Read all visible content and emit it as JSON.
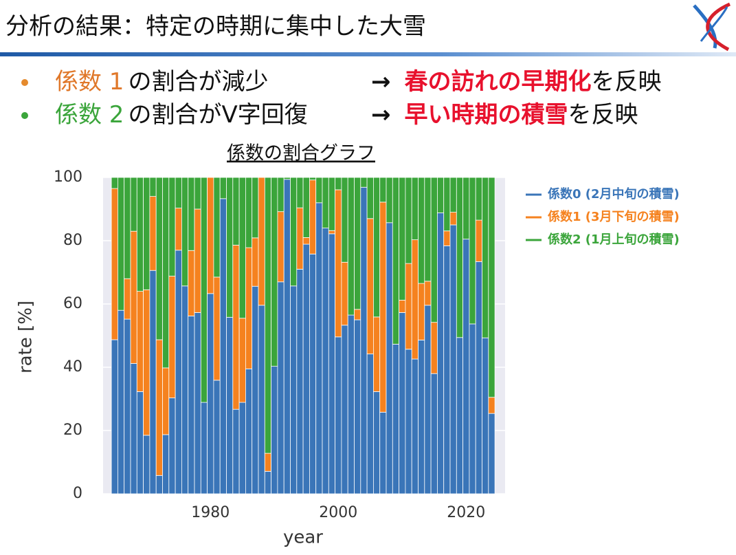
{
  "header": {
    "title": "分析の結果：特定の時期に集中した大雪"
  },
  "bullets": [
    {
      "label": "係数 1",
      "text": "の割合が減少",
      "arrow": "→",
      "highlight": "春の訪れの早期化",
      "tail": "を反映"
    },
    {
      "label": "係数 2",
      "text": "の割合がV字回復",
      "arrow": "→",
      "highlight": "早い時期の積雪",
      "tail": "を反映"
    }
  ],
  "chart_data": {
    "type": "bar",
    "stacked": true,
    "title": "係数の割合グラフ",
    "xlabel": "year",
    "ylabel": "rate [%]",
    "x": [
      1965,
      1966,
      1967,
      1968,
      1969,
      1970,
      1971,
      1972,
      1973,
      1974,
      1975,
      1976,
      1977,
      1978,
      1979,
      1980,
      1981,
      1982,
      1983,
      1984,
      1985,
      1986,
      1987,
      1988,
      1989,
      1990,
      1991,
      1992,
      1993,
      1994,
      1995,
      1996,
      1997,
      1998,
      1999,
      2000,
      2001,
      2002,
      2003,
      2004,
      2005,
      2006,
      2007,
      2008,
      2009,
      2010,
      2011,
      2012,
      2013,
      2014,
      2015,
      2016,
      2017,
      2018,
      2019,
      2020,
      2021,
      2022,
      2023,
      2024
    ],
    "series": [
      {
        "name": "係数0 (2月中旬の積雪)",
        "color": "#3a75b8",
        "values": [
          48.7,
          58,
          55.2,
          41.2,
          32.3,
          18.5,
          70.6,
          5.8,
          18.7,
          30.3,
          77,
          65.7,
          56.2,
          57.3,
          28.9,
          63.3,
          35.9,
          93.3,
          55.8,
          26.7,
          28.9,
          39.5,
          65.6,
          59.6,
          7.1,
          40.3,
          67,
          99.4,
          65.7,
          71,
          78.9,
          75.8,
          92,
          84,
          82.2,
          49.6,
          53.3,
          56.5,
          55,
          96.9,
          44.2,
          32.3,
          25.8,
          85.7,
          47.3,
          57.3,
          45.7,
          42.6,
          48.6,
          59.6,
          38,
          88.8,
          78.4,
          85,
          49.4,
          80.5,
          53.7,
          73.4,
          49.3,
          25.4
        ]
      },
      {
        "name": "係数1 (3月下旬の積雪)",
        "color": "#f5821f",
        "values": [
          47.8,
          0,
          12.8,
          41.8,
          31.7,
          46,
          23.4,
          42.9,
          21.1,
          38.5,
          13.3,
          0,
          20.7,
          32.7,
          0,
          36.7,
          32.6,
          0,
          0,
          51.9,
          26.6,
          38.3,
          15.3,
          40.4,
          5.7,
          0,
          22.2,
          0,
          0,
          19.4,
          2.1,
          23.4,
          0,
          0,
          1,
          46.5,
          19.9,
          0,
          3.3,
          0,
          42.8,
          23.6,
          66.4,
          0,
          0,
          3.9,
          27.1,
          37.7,
          17.9,
          7.6,
          16.2,
          0,
          4.7,
          4,
          0,
          0,
          0,
          13.1,
          0,
          5.1
        ]
      },
      {
        "name": "係数2 (1月上旬の積雪)",
        "color": "#3ba53b",
        "values": [
          3.5,
          42,
          32,
          17,
          36,
          35.5,
          6,
          51.3,
          60.2,
          31.2,
          9.7,
          34.3,
          23.1,
          10,
          71.1,
          0,
          31.5,
          6.7,
          44.2,
          21.4,
          44.5,
          22.2,
          19.1,
          0,
          87.2,
          59.7,
          10.8,
          0.6,
          34.3,
          9.6,
          19,
          0.8,
          8,
          16,
          16.8,
          3.9,
          26.8,
          43.5,
          41.7,
          3.1,
          13,
          44.1,
          7.8,
          14.3,
          52.7,
          38.8,
          27.2,
          19.7,
          33.5,
          32.8,
          45.8,
          11.2,
          16.9,
          11,
          50.6,
          19.5,
          46.3,
          13.5,
          50.7,
          69.5
        ]
      }
    ],
    "xlim": [
      1963.2,
      2026.1
    ],
    "xticks": [
      1980,
      2000,
      2020
    ],
    "ylim": [
      0,
      100
    ],
    "yticks": [
      0,
      20,
      40,
      60,
      80,
      100
    ],
    "grid": true
  }
}
